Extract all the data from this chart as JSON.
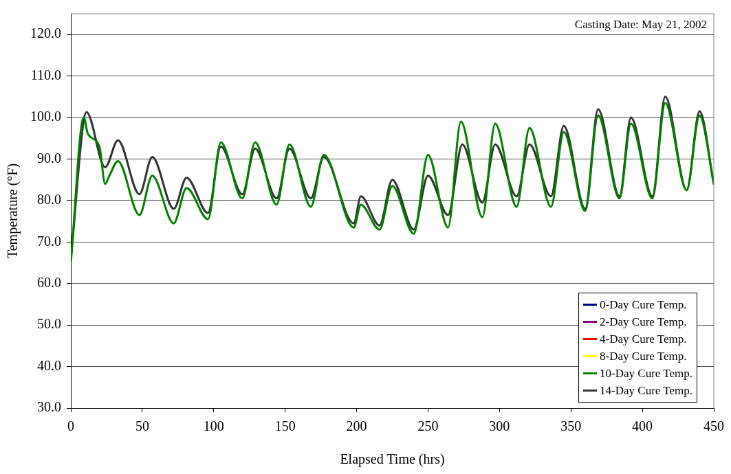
{
  "chart_data": {
    "type": "line",
    "xlabel": "Elapsed Time (hrs)",
    "ylabel": "Temperature (°F)",
    "annotations": [
      "Casting Date:  May 21, 2002"
    ],
    "xlim": [
      0,
      450
    ],
    "xticks": [
      0,
      50,
      100,
      150,
      200,
      250,
      300,
      350,
      400,
      450
    ],
    "ylim": [
      30,
      125
    ],
    "yticks": [
      {
        "value": 30,
        "label": "30.0"
      },
      {
        "value": 40,
        "label": "40.0"
      },
      {
        "value": 50,
        "label": "50.0"
      },
      {
        "value": 60,
        "label": "60.0"
      },
      {
        "value": 70,
        "label": "70.0"
      },
      {
        "value": 80,
        "label": "80.0"
      },
      {
        "value": 90,
        "label": "90.0"
      },
      {
        "value": 100,
        "label": "100.0"
      },
      {
        "value": 110,
        "label": "110.0"
      },
      {
        "value": 120,
        "label": "120.0"
      }
    ],
    "grid": "y",
    "legend": "bottom right",
    "marker": "none",
    "line_style": "solid",
    "series": [
      {
        "name": "0-Day Cure Temp.",
        "color": "#000080"
      },
      {
        "name": "2-Day Cure Temp.",
        "color": "#800080"
      },
      {
        "name": "4-Day Cure Temp.",
        "color": "#ff0000"
      },
      {
        "name": "8-Day Cure Temp.",
        "color": "#ffff00"
      },
      {
        "name": "10-Day Cure Temp.",
        "color": "#008000",
        "x": [
          0,
          9,
          12,
          20,
          24,
          27,
          33,
          48,
          57,
          72,
          81,
          96,
          105,
          120,
          129,
          144,
          153,
          168,
          177,
          198,
          203,
          216,
          225,
          240,
          250,
          264,
          273,
          288,
          297,
          312,
          321,
          336,
          345,
          360,
          369,
          384,
          392,
          407,
          416,
          431,
          440,
          450
        ],
        "values": [
          65,
          100,
          96,
          93,
          84,
          86,
          89.5,
          76.5,
          86,
          74.5,
          83,
          75.5,
          94,
          80.5,
          94,
          79,
          93.5,
          78.5,
          91,
          73.5,
          79,
          73,
          83.5,
          72,
          91,
          73.5,
          99,
          76,
          98.5,
          78.5,
          97.5,
          78.5,
          96.5,
          77.5,
          100.5,
          80.5,
          98.5,
          80.5,
          103.5,
          82.5,
          100.5,
          84
        ]
      },
      {
        "name": "14-Day Cure Temp.",
        "color": "#333333",
        "x": [
          0,
          11,
          24,
          33,
          48,
          57,
          72,
          81,
          96,
          105,
          120,
          129,
          144,
          153,
          168,
          177,
          198,
          203,
          216,
          225,
          240,
          250,
          264,
          274,
          288,
          297,
          312,
          321,
          336,
          345,
          360,
          369,
          384,
          392,
          407,
          416,
          431,
          440,
          450
        ],
        "values": [
          66,
          101.3,
          88,
          94.5,
          81.5,
          90.5,
          78,
          85.5,
          77,
          93,
          81.5,
          92.5,
          80.5,
          92.5,
          80.5,
          90.5,
          74.5,
          81,
          74,
          85,
          73,
          86,
          76.5,
          93.5,
          79.5,
          93.5,
          81,
          93.5,
          81,
          98,
          78,
          102,
          81,
          100,
          81,
          105,
          82.5,
          101.5,
          84
        ]
      }
    ]
  }
}
